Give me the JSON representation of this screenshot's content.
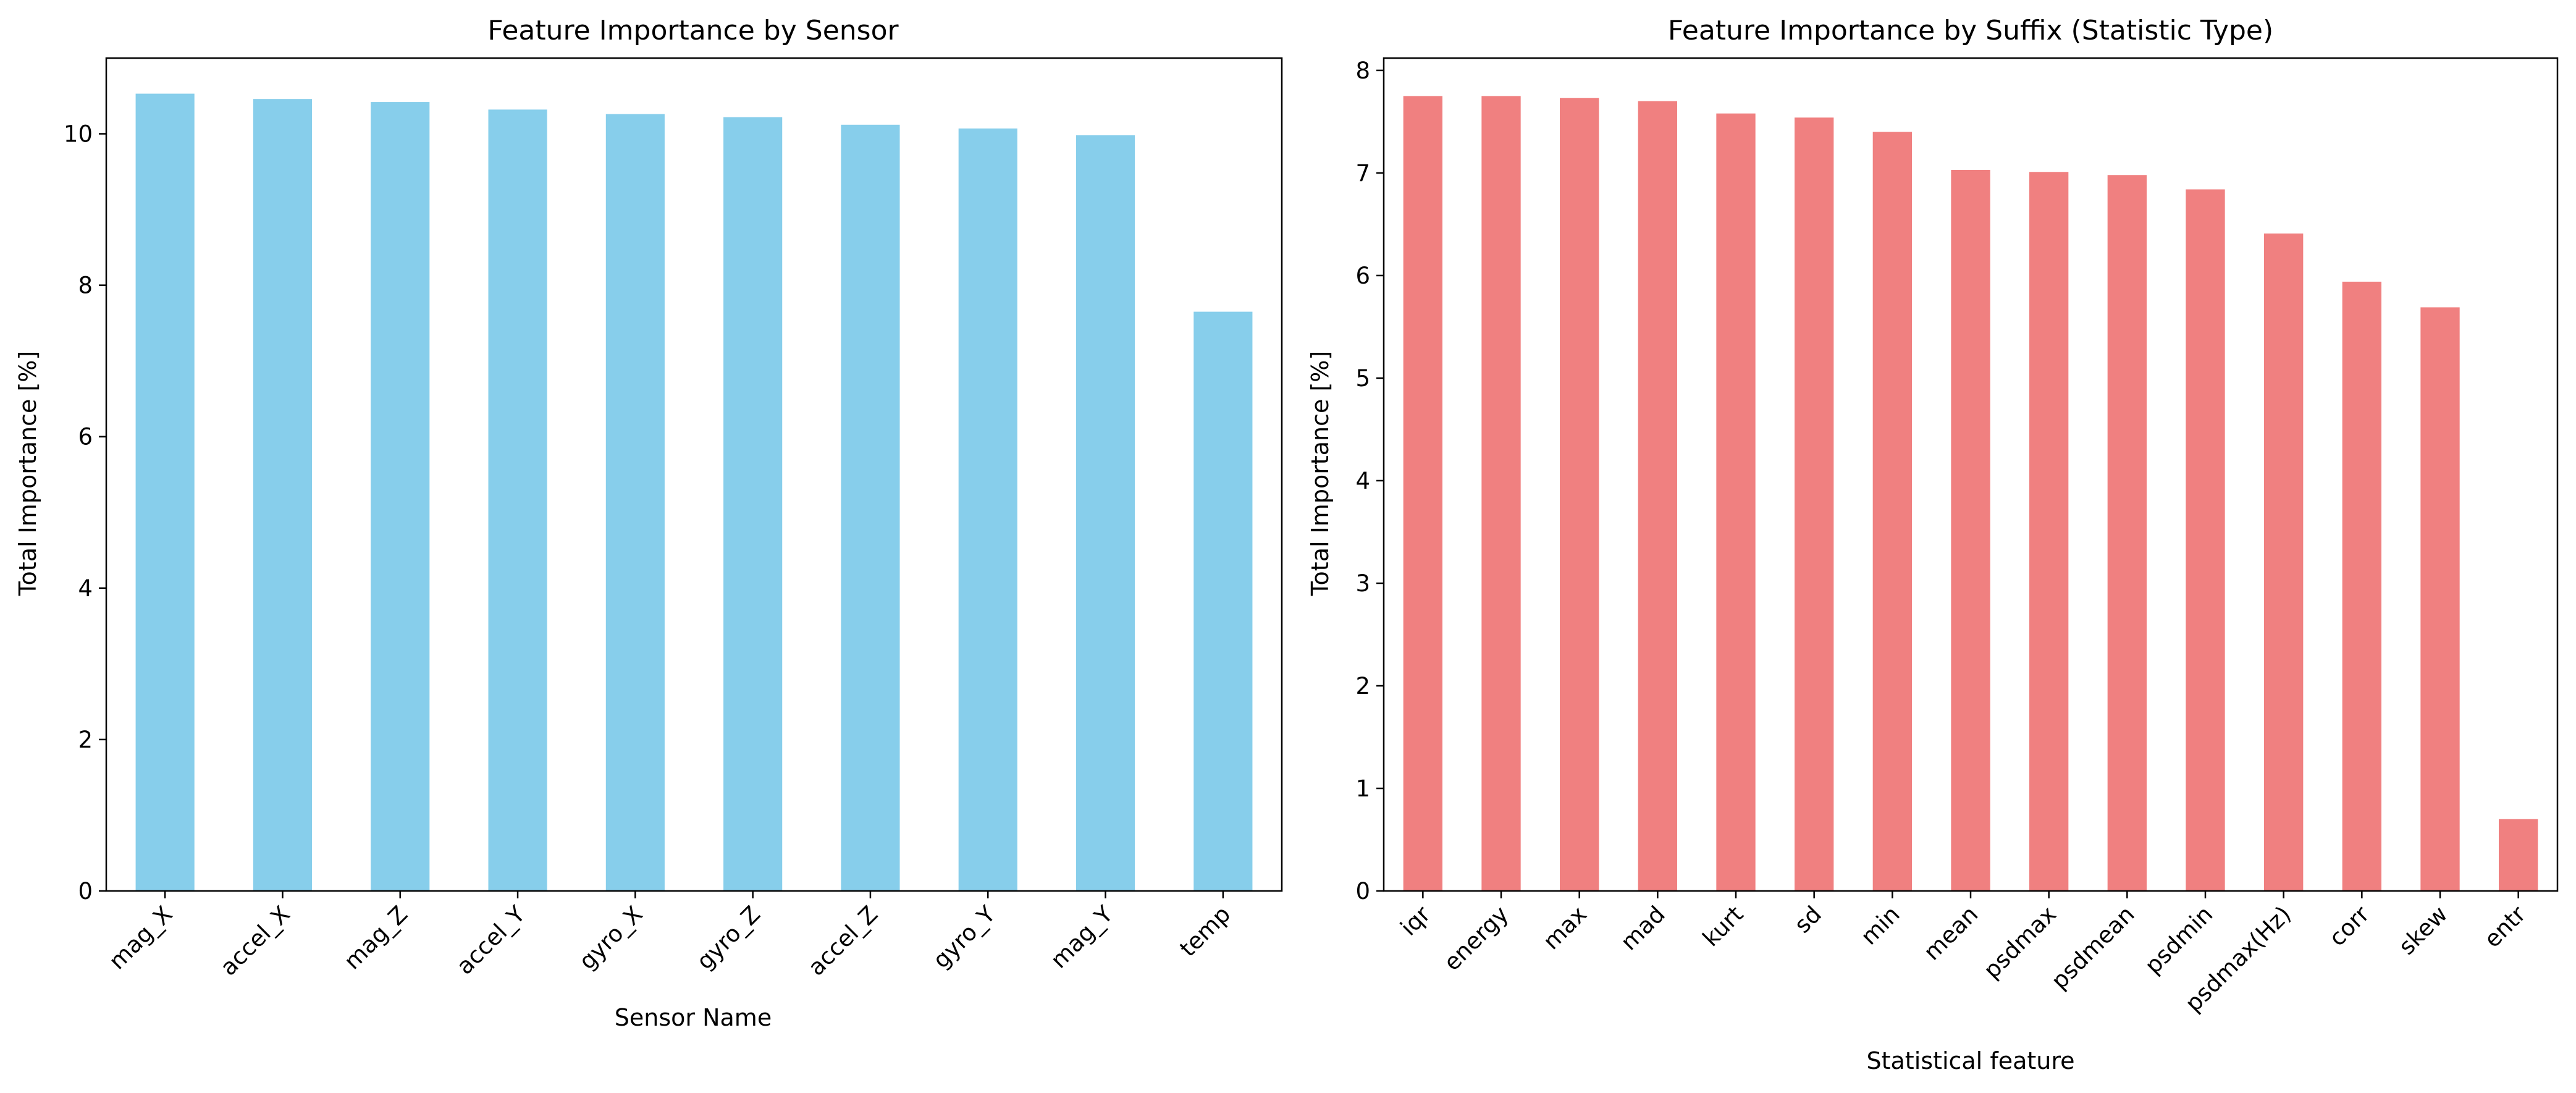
{
  "chart_data": [
    {
      "type": "bar",
      "title": "Feature Importance by Sensor",
      "xlabel": "Sensor Name",
      "ylabel": "Total Importance [%]",
      "color": "#87CEEB",
      "ylim": [
        0,
        11
      ],
      "yticks": [
        "0",
        "2",
        "4",
        "6",
        "8",
        "10"
      ],
      "ytick_values": [
        0,
        2,
        4,
        6,
        8,
        10
      ],
      "grid": false,
      "categories": [
        "mag_X",
        "accel_X",
        "mag_Z",
        "accel_Y",
        "gyro_X",
        "gyro_Z",
        "accel_Z",
        "gyro_Y",
        "mag_Y",
        "temp"
      ],
      "values": [
        10.53,
        10.46,
        10.42,
        10.32,
        10.26,
        10.22,
        10.12,
        10.07,
        9.98,
        7.65
      ]
    },
    {
      "type": "bar",
      "title": "Feature Importance by Suffix (Statistic Type)",
      "xlabel": "Statistical feature",
      "ylabel": "Total Importance [%]",
      "color": "#F08080",
      "ylim": [
        0,
        8.12
      ],
      "yticks": [
        "0",
        "1",
        "2",
        "3",
        "4",
        "5",
        "6",
        "7",
        "8"
      ],
      "ytick_values": [
        0,
        1,
        2,
        3,
        4,
        5,
        6,
        7,
        8
      ],
      "grid": false,
      "categories": [
        "iqr",
        "energy",
        "max",
        "mad",
        "kurt",
        "sd",
        "min",
        "mean",
        "psdmax",
        "psdmean",
        "psdmin",
        "psdmax(Hz)",
        "corr",
        "skew",
        "entr"
      ],
      "values": [
        7.75,
        7.75,
        7.73,
        7.7,
        7.58,
        7.54,
        7.4,
        7.03,
        7.01,
        6.98,
        6.84,
        6.41,
        5.94,
        5.69,
        0.7
      ]
    }
  ]
}
